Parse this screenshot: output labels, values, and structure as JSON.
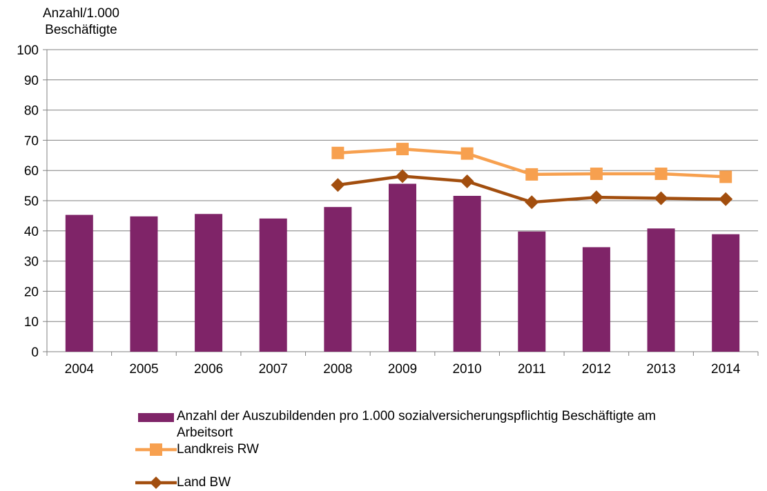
{
  "chart_data": {
    "type": "bar",
    "ylabel_lines": [
      "Anzahl/1.000",
      "Beschäftigte"
    ],
    "ylim": [
      0,
      100
    ],
    "yticks": [
      0,
      10,
      20,
      30,
      40,
      50,
      60,
      70,
      80,
      90,
      100
    ],
    "categories": [
      "2004",
      "2005",
      "2006",
      "2007",
      "2008",
      "2009",
      "2010",
      "2011",
      "2012",
      "2013",
      "2014"
    ],
    "grid": true,
    "legend_position": "bottom",
    "series": [
      {
        "name": "Anzahl der Auszubildenden pro 1.000 sozialversicherungspflichtig Beschäftigte am Arbeitsort",
        "type": "bar",
        "color": "#7F2468",
        "values": [
          45.3,
          44.8,
          45.6,
          44.1,
          47.9,
          55.6,
          51.6,
          39.8,
          34.6,
          40.8,
          38.9
        ]
      },
      {
        "name": "Landkreis RW",
        "type": "line",
        "marker": "square",
        "color": "#F7A04F",
        "values": [
          null,
          null,
          null,
          null,
          65.8,
          67.1,
          65.6,
          58.7,
          58.9,
          58.9,
          57.9
        ]
      },
      {
        "name": "Land BW",
        "type": "line",
        "marker": "diamond",
        "color": "#A24E0E",
        "values": [
          null,
          null,
          null,
          null,
          55.2,
          58.1,
          56.4,
          49.5,
          51.1,
          50.8,
          50.5
        ]
      }
    ]
  }
}
